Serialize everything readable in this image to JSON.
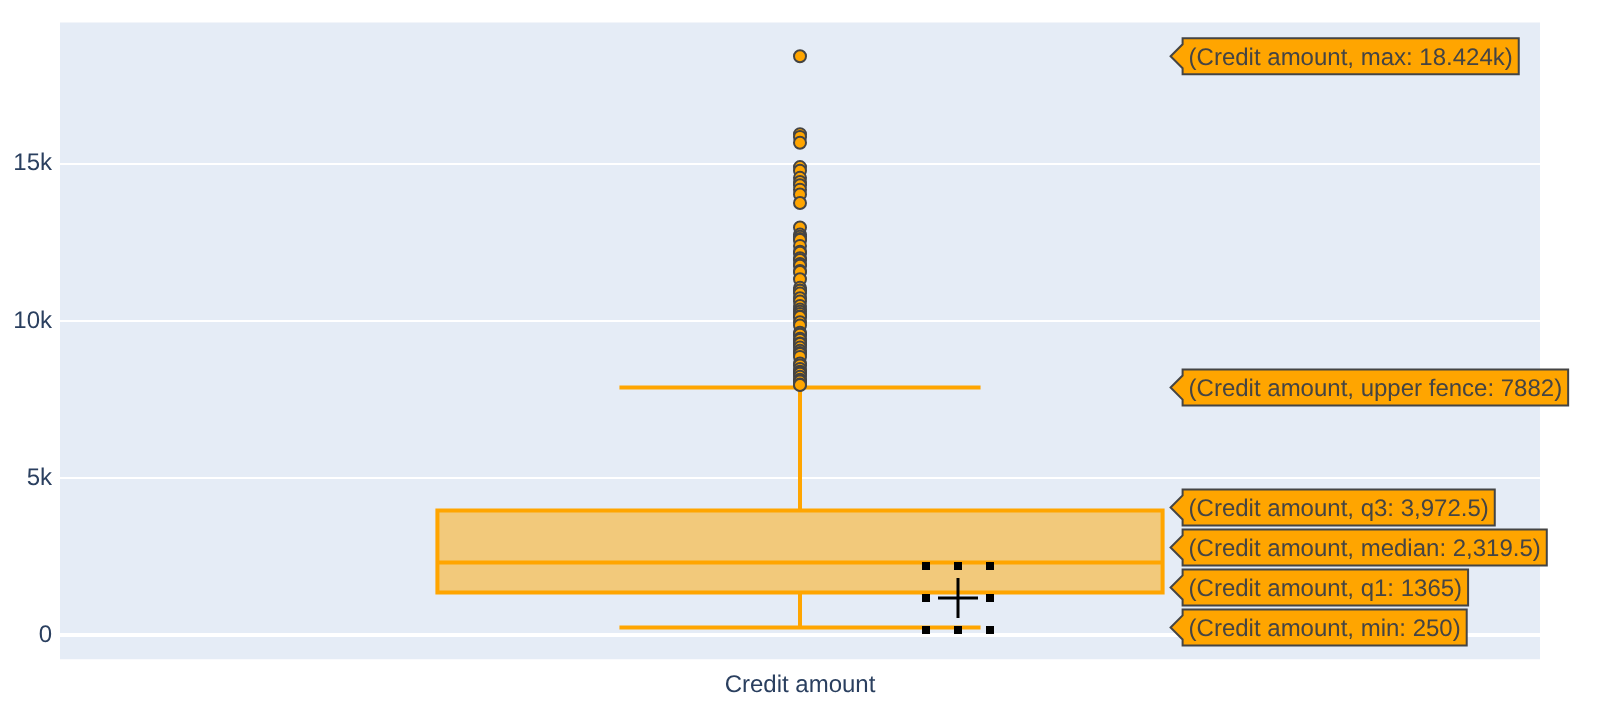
{
  "chart_data": {
    "type": "box",
    "categories": [
      "Credit amount"
    ],
    "boxes": [
      {
        "low": 250,
        "q1": 1365,
        "median": 2319.5,
        "q3": 3972.5,
        "high": 7882,
        "outliers": [
          18424,
          15945,
          15857,
          15672,
          14896,
          14782,
          14555,
          14421,
          14318,
          14179,
          14027,
          13756,
          12976,
          12749,
          12680,
          12612,
          12579,
          12389,
          12204,
          12169,
          11998,
          11938,
          11816,
          11760,
          11590,
          11560,
          11328,
          11054,
          10974,
          10961,
          10875,
          10722,
          10623,
          10477,
          10366,
          10297,
          10222,
          10144,
          10127,
          9960,
          9857,
          9629,
          9572,
          9566,
          9436,
          9398,
          9283,
          9277,
          9271,
          9157,
          9055,
          8978,
          8947,
          8858,
          8648,
          8588,
          8471,
          8386,
          8358,
          8335,
          8318,
          8229,
          8133,
          8086,
          8072,
          7980,
          7966
        ]
      }
    ],
    "color": "#ffa500",
    "ylim": [
      -760,
      19500
    ],
    "yticks": [
      {
        "value": 0,
        "label": "0"
      },
      {
        "value": 5000,
        "label": "5k"
      },
      {
        "value": 10000,
        "label": "10k"
      },
      {
        "value": 15000,
        "label": "15k"
      }
    ],
    "grid": "y",
    "annotations": [
      "(Credit amount, max: 18.424k)",
      "(Credit amount, upper fence: 7882)",
      "(Credit amount, q3: 3,972.5)",
      "(Credit amount, median: 2,319.5)",
      "(Credit amount, q1: 1365)",
      "(Credit amount, min: 250)"
    ]
  }
}
